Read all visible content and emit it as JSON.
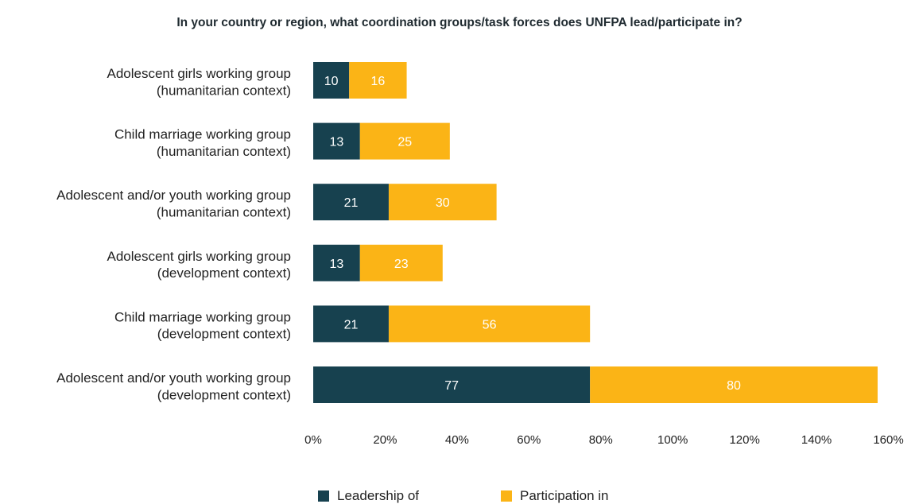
{
  "chart_data": {
    "type": "bar",
    "orientation": "horizontal",
    "stacked": true,
    "title": "In your country or region, what coordination groups/task forces does UNFPA lead/participate in?",
    "categories": [
      [
        "Adolescent girls working group",
        "(humanitarian context)"
      ],
      [
        "Child marriage working group",
        "(humanitarian context)"
      ],
      [
        "Adolescent and/or youth working group",
        "(humanitarian context)"
      ],
      [
        "Adolescent girls working group",
        "(development context)"
      ],
      [
        "Child marriage working group",
        "(development context)"
      ],
      [
        "Adolescent and/or youth working group",
        "(development context)"
      ]
    ],
    "series": [
      {
        "name": "Leadership of",
        "color": "#17414f",
        "values": [
          10,
          13,
          21,
          13,
          21,
          77
        ]
      },
      {
        "name": "Participation in",
        "color": "#fbb416",
        "values": [
          16,
          25,
          30,
          23,
          56,
          80
        ]
      }
    ],
    "xlim": [
      0,
      160
    ],
    "xticks": [
      "0%",
      "20%",
      "40%",
      "60%",
      "80%",
      "100%",
      "120%",
      "140%",
      "160%"
    ],
    "grid": false,
    "legend_position": "bottom"
  }
}
